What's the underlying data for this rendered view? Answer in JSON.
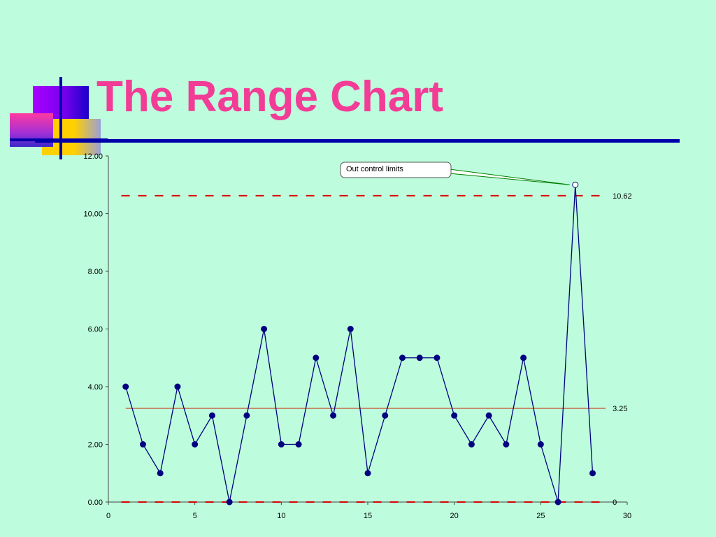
{
  "slide": {
    "title": "The Range Chart"
  },
  "colors": {
    "background": "#bdfcdc",
    "title": "#f23c96",
    "accent_rule": "#0000aa",
    "series": "#000080",
    "center_line": "#cc2200",
    "control_limit": "#dd0000",
    "callout_leader": "#008000"
  },
  "chart_data": {
    "type": "line",
    "title": "",
    "xlabel": "",
    "ylabel": "",
    "xlim": [
      0,
      30
    ],
    "ylim": [
      0,
      12
    ],
    "x_ticks": [
      0,
      5,
      10,
      15,
      20,
      25,
      30
    ],
    "x_tick_labels": [
      "0",
      "5",
      "10",
      "15",
      "20",
      "25",
      "30"
    ],
    "y_ticks": [
      0,
      2,
      4,
      6,
      8,
      10,
      12
    ],
    "y_tick_labels": [
      "0.00",
      "2.00",
      "4.00",
      "6.00",
      "8.00",
      "10.00",
      "12.00"
    ],
    "grid": false,
    "legend": "none",
    "series": [
      {
        "x": [
          1,
          2,
          3,
          4,
          5,
          6,
          7,
          8,
          9,
          10,
          11,
          12,
          13,
          14,
          15,
          16,
          17,
          18,
          19,
          20,
          21,
          22,
          23,
          24,
          25,
          26,
          27,
          28
        ],
        "values": [
          4,
          2,
          1,
          4,
          2,
          3,
          0,
          3,
          6,
          2,
          2,
          5,
          3,
          6,
          1,
          3,
          5,
          5,
          5,
          3,
          2,
          3,
          2,
          5,
          2,
          0,
          11,
          1
        ],
        "marker": "circle",
        "out_of_control_index": 26
      }
    ],
    "reference_lines": [
      {
        "kind": "ucl",
        "y": 10.62,
        "label": "10.62",
        "style": "dashed",
        "x_from": 0.75,
        "x_to": 28.75
      },
      {
        "kind": "center",
        "y": 3.25,
        "label": "3.25",
        "style": "solid",
        "x_from": 1,
        "x_to": 28.75
      },
      {
        "kind": "lcl",
        "y": 0,
        "label": "0",
        "style": "dashed",
        "x_from": 0.75,
        "x_to": 28.75
      }
    ],
    "annotations": [
      {
        "text": "Out control limits",
        "target_x": 27,
        "target_y": 11
      }
    ]
  }
}
